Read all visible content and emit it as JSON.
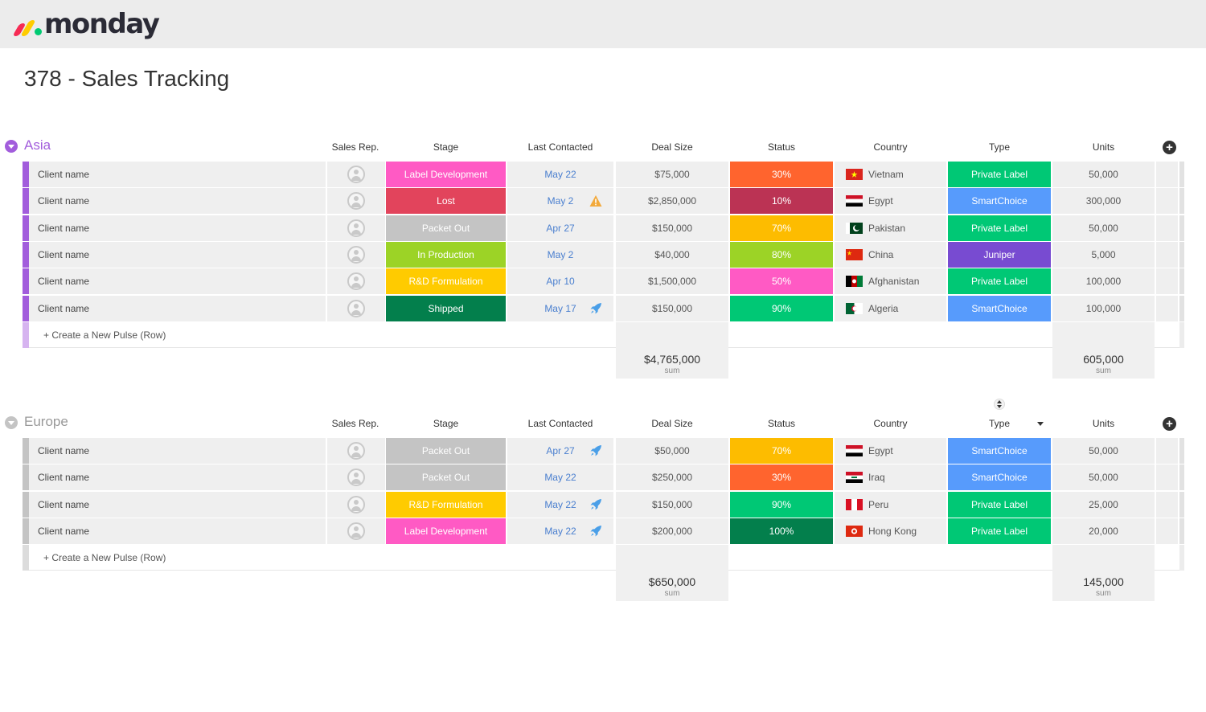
{
  "app": {
    "logo_text": "monday"
  },
  "board": {
    "title": "378 - Sales Tracking"
  },
  "columns": {
    "sales_rep": "Sales Rep.",
    "stage": "Stage",
    "last_contacted": "Last Contacted",
    "deal_size": "Deal Size",
    "status": "Status",
    "country": "Country",
    "type": "Type",
    "units": "Units"
  },
  "colors": {
    "asia_group": "#a25ddc",
    "europe_group": "#c4c4c4",
    "label_development": "#ff5ac4",
    "lost": "#e2445c",
    "packet_out": "#c4c4c4",
    "in_production": "#9cd326",
    "rd_formulation": "#ffcb00",
    "shipped": "#037f4c",
    "private_label": "#00c875",
    "smartchoice": "#579bfc",
    "juniper": "#784bd1",
    "status_30": "#ff642e",
    "status_10": "#bb3354",
    "status_70": "#fdbc00",
    "status_80": "#9cd326",
    "status_50": "#ff5ac4",
    "status_90": "#00c875",
    "status_100": "#037f4c"
  },
  "groups": [
    {
      "name": "Asia",
      "color": "#a25ddc",
      "rows": [
        {
          "name": "Client name",
          "stage": "Label Development",
          "stage_color": "#ff5ac4",
          "date": "May 22",
          "icon": "",
          "deal": "$75,000",
          "status": "30%",
          "status_color": "#ff642e",
          "country": "Vietnam",
          "flag": "vietnam",
          "type": "Private Label",
          "type_color": "#00c875",
          "units": "50,000"
        },
        {
          "name": "Client name",
          "stage": "Lost",
          "stage_color": "#e2445c",
          "date": "May 2",
          "icon": "warning-icon",
          "deal": "$2,850,000",
          "status": "10%",
          "status_color": "#bb3354",
          "country": "Egypt",
          "flag": "egypt",
          "type": "SmartChoice",
          "type_color": "#579bfc",
          "units": "300,000"
        },
        {
          "name": "Client name",
          "stage": "Packet Out",
          "stage_color": "#c4c4c4",
          "date": "Apr 27",
          "icon": "",
          "deal": "$150,000",
          "status": "70%",
          "status_color": "#fdbc00",
          "country": "Pakistan",
          "flag": "pakistan",
          "type": "Private Label",
          "type_color": "#00c875",
          "units": "50,000"
        },
        {
          "name": "Client name",
          "stage": "In Production",
          "stage_color": "#9cd326",
          "date": "May 2",
          "icon": "",
          "deal": "$40,000",
          "status": "80%",
          "status_color": "#9cd326",
          "country": "China",
          "flag": "china",
          "type": "Juniper",
          "type_color": "#784bd1",
          "units": "5,000"
        },
        {
          "name": "Client name",
          "stage": "R&D Formulation",
          "stage_color": "#ffcb00",
          "date": "Apr 10",
          "icon": "",
          "deal": "$1,500,000",
          "status": "50%",
          "status_color": "#ff5ac4",
          "country": "Afghanistan",
          "flag": "afghanistan",
          "type": "Private Label",
          "type_color": "#00c875",
          "units": "100,000"
        },
        {
          "name": "Client name",
          "stage": "Shipped",
          "stage_color": "#037f4c",
          "date": "May 17",
          "icon": "rocket-icon",
          "deal": "$150,000",
          "status": "90%",
          "status_color": "#00c875",
          "country": "Algeria",
          "flag": "algeria",
          "type": "SmartChoice",
          "type_color": "#579bfc",
          "units": "100,000"
        }
      ],
      "add_row_label": "+ Create a New Pulse (Row)",
      "deal_sum": "$4,765,000",
      "units_sum": "605,000",
      "sum_label": "sum"
    },
    {
      "name": "Europe",
      "color": "#c4c4c4",
      "rows": [
        {
          "name": "Client name",
          "stage": "Packet Out",
          "stage_color": "#c4c4c4",
          "date": "Apr 27",
          "icon": "rocket-icon",
          "deal": "$50,000",
          "status": "70%",
          "status_color": "#fdbc00",
          "country": "Egypt",
          "flag": "egypt",
          "type": "SmartChoice",
          "type_color": "#579bfc",
          "units": "50,000"
        },
        {
          "name": "Client name",
          "stage": "Packet Out",
          "stage_color": "#c4c4c4",
          "date": "May 22",
          "icon": "",
          "deal": "$250,000",
          "status": "30%",
          "status_color": "#ff642e",
          "country": "Iraq",
          "flag": "iraq",
          "type": "SmartChoice",
          "type_color": "#579bfc",
          "units": "50,000"
        },
        {
          "name": "Client name",
          "stage": "R&D Formulation",
          "stage_color": "#ffcb00",
          "date": "May 22",
          "icon": "rocket-icon",
          "deal": "$150,000",
          "status": "90%",
          "status_color": "#00c875",
          "country": "Peru",
          "flag": "peru",
          "type": "Private Label",
          "type_color": "#00c875",
          "units": "25,000"
        },
        {
          "name": "Client name",
          "stage": "Label Development",
          "stage_color": "#ff5ac4",
          "date": "May 22",
          "icon": "rocket-icon",
          "deal": "$200,000",
          "status": "100%",
          "status_color": "#037f4c",
          "country": "Hong Kong",
          "flag": "hongkong",
          "type": "Private Label",
          "type_color": "#00c875",
          "units": "20,000"
        }
      ],
      "add_row_label": "+ Create a New Pulse (Row)",
      "deal_sum": "$650,000",
      "units_sum": "145,000",
      "sum_label": "sum"
    }
  ]
}
